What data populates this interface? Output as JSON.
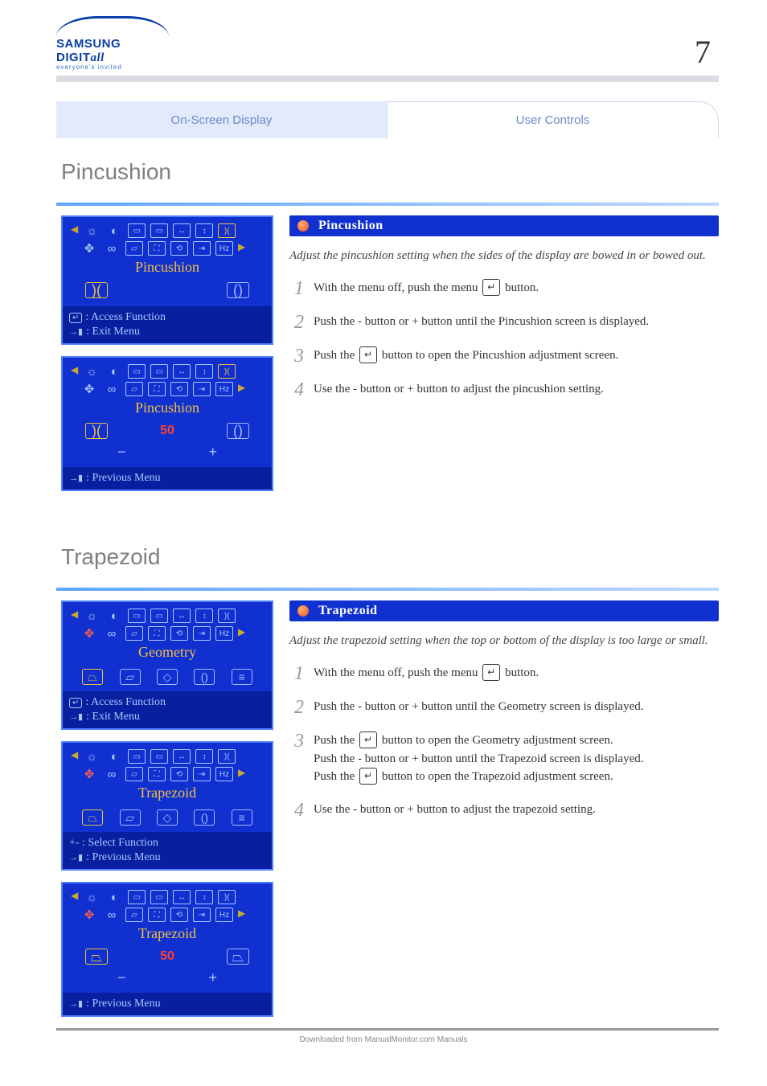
{
  "page": {
    "logo_main": "SAMSUNG DIGIT",
    "logo_suffix": "all",
    "logo_tagline": "everyone's invited",
    "chapter_number": "7",
    "tab_left": "On-Screen Display",
    "tab_right": "User Controls",
    "copyright": "Downloaded from ManualMonitor.com Manuals"
  },
  "colors": {
    "osd_bg": "#1030d0",
    "osd_accent": "#f0c040",
    "osd_border": "#5080ff",
    "tab_inactive_bg": "#e3eafc",
    "tab_text": "#6b8ac7",
    "sep_gradient_from": "#5da5ff",
    "sep_gradient_to": "#bcd6ff",
    "band_bg": "#d9dde3",
    "step_num_color": "#9a9a9a"
  },
  "section1": {
    "title": "Pincushion",
    "osd1": {
      "label": "Pincushion",
      "access": "Access Function",
      "exit": "Exit Menu"
    },
    "osd2": {
      "label": "Pincushion",
      "value": "50",
      "previous": "Previous Menu"
    },
    "pill": "Pincushion",
    "desc": "Adjust the pincushion setting when the sides of the display are bowed in or bowed out.",
    "steps": {
      "s1_a": "With the menu off, push the menu ",
      "s1_b": " button.",
      "s2": "Push the - button or + button until the Pincushion screen is displayed.",
      "s3_a": "Push the ",
      "s3_b": " button to open the Pincushion adjustment screen.",
      "s4": "Use the - button or + button to adjust the pincushion setting."
    }
  },
  "section2": {
    "title": "Trapezoid",
    "osd1": {
      "label": "Geometry",
      "access": "Access Function",
      "exit": "Exit Menu"
    },
    "osd2": {
      "label": "Trapezoid",
      "select": "Select Function",
      "previous": "Previous Menu"
    },
    "osd3": {
      "label": "Trapezoid",
      "value": "50",
      "previous": "Previous Menu"
    },
    "pill": "Trapezoid",
    "desc": "Adjust the trapezoid setting when the top or bottom of the display is too large or small.",
    "steps": {
      "s1_a": "With the menu off, push the menu ",
      "s1_b": " button.",
      "s2": "Push the - button or + button until the Geometry screen is displayed.",
      "s3_a": "Push the ",
      "s3_b": " button to open the Geometry adjustment screen.",
      "s3_c": "Push the - button or + button until the Trapezoid screen is displayed.",
      "s3_d": "Push the ",
      "s3_e": " button to open the Trapezoid adjustment screen.",
      "s4": "Use the - button or + button to adjust the trapezoid setting."
    }
  }
}
